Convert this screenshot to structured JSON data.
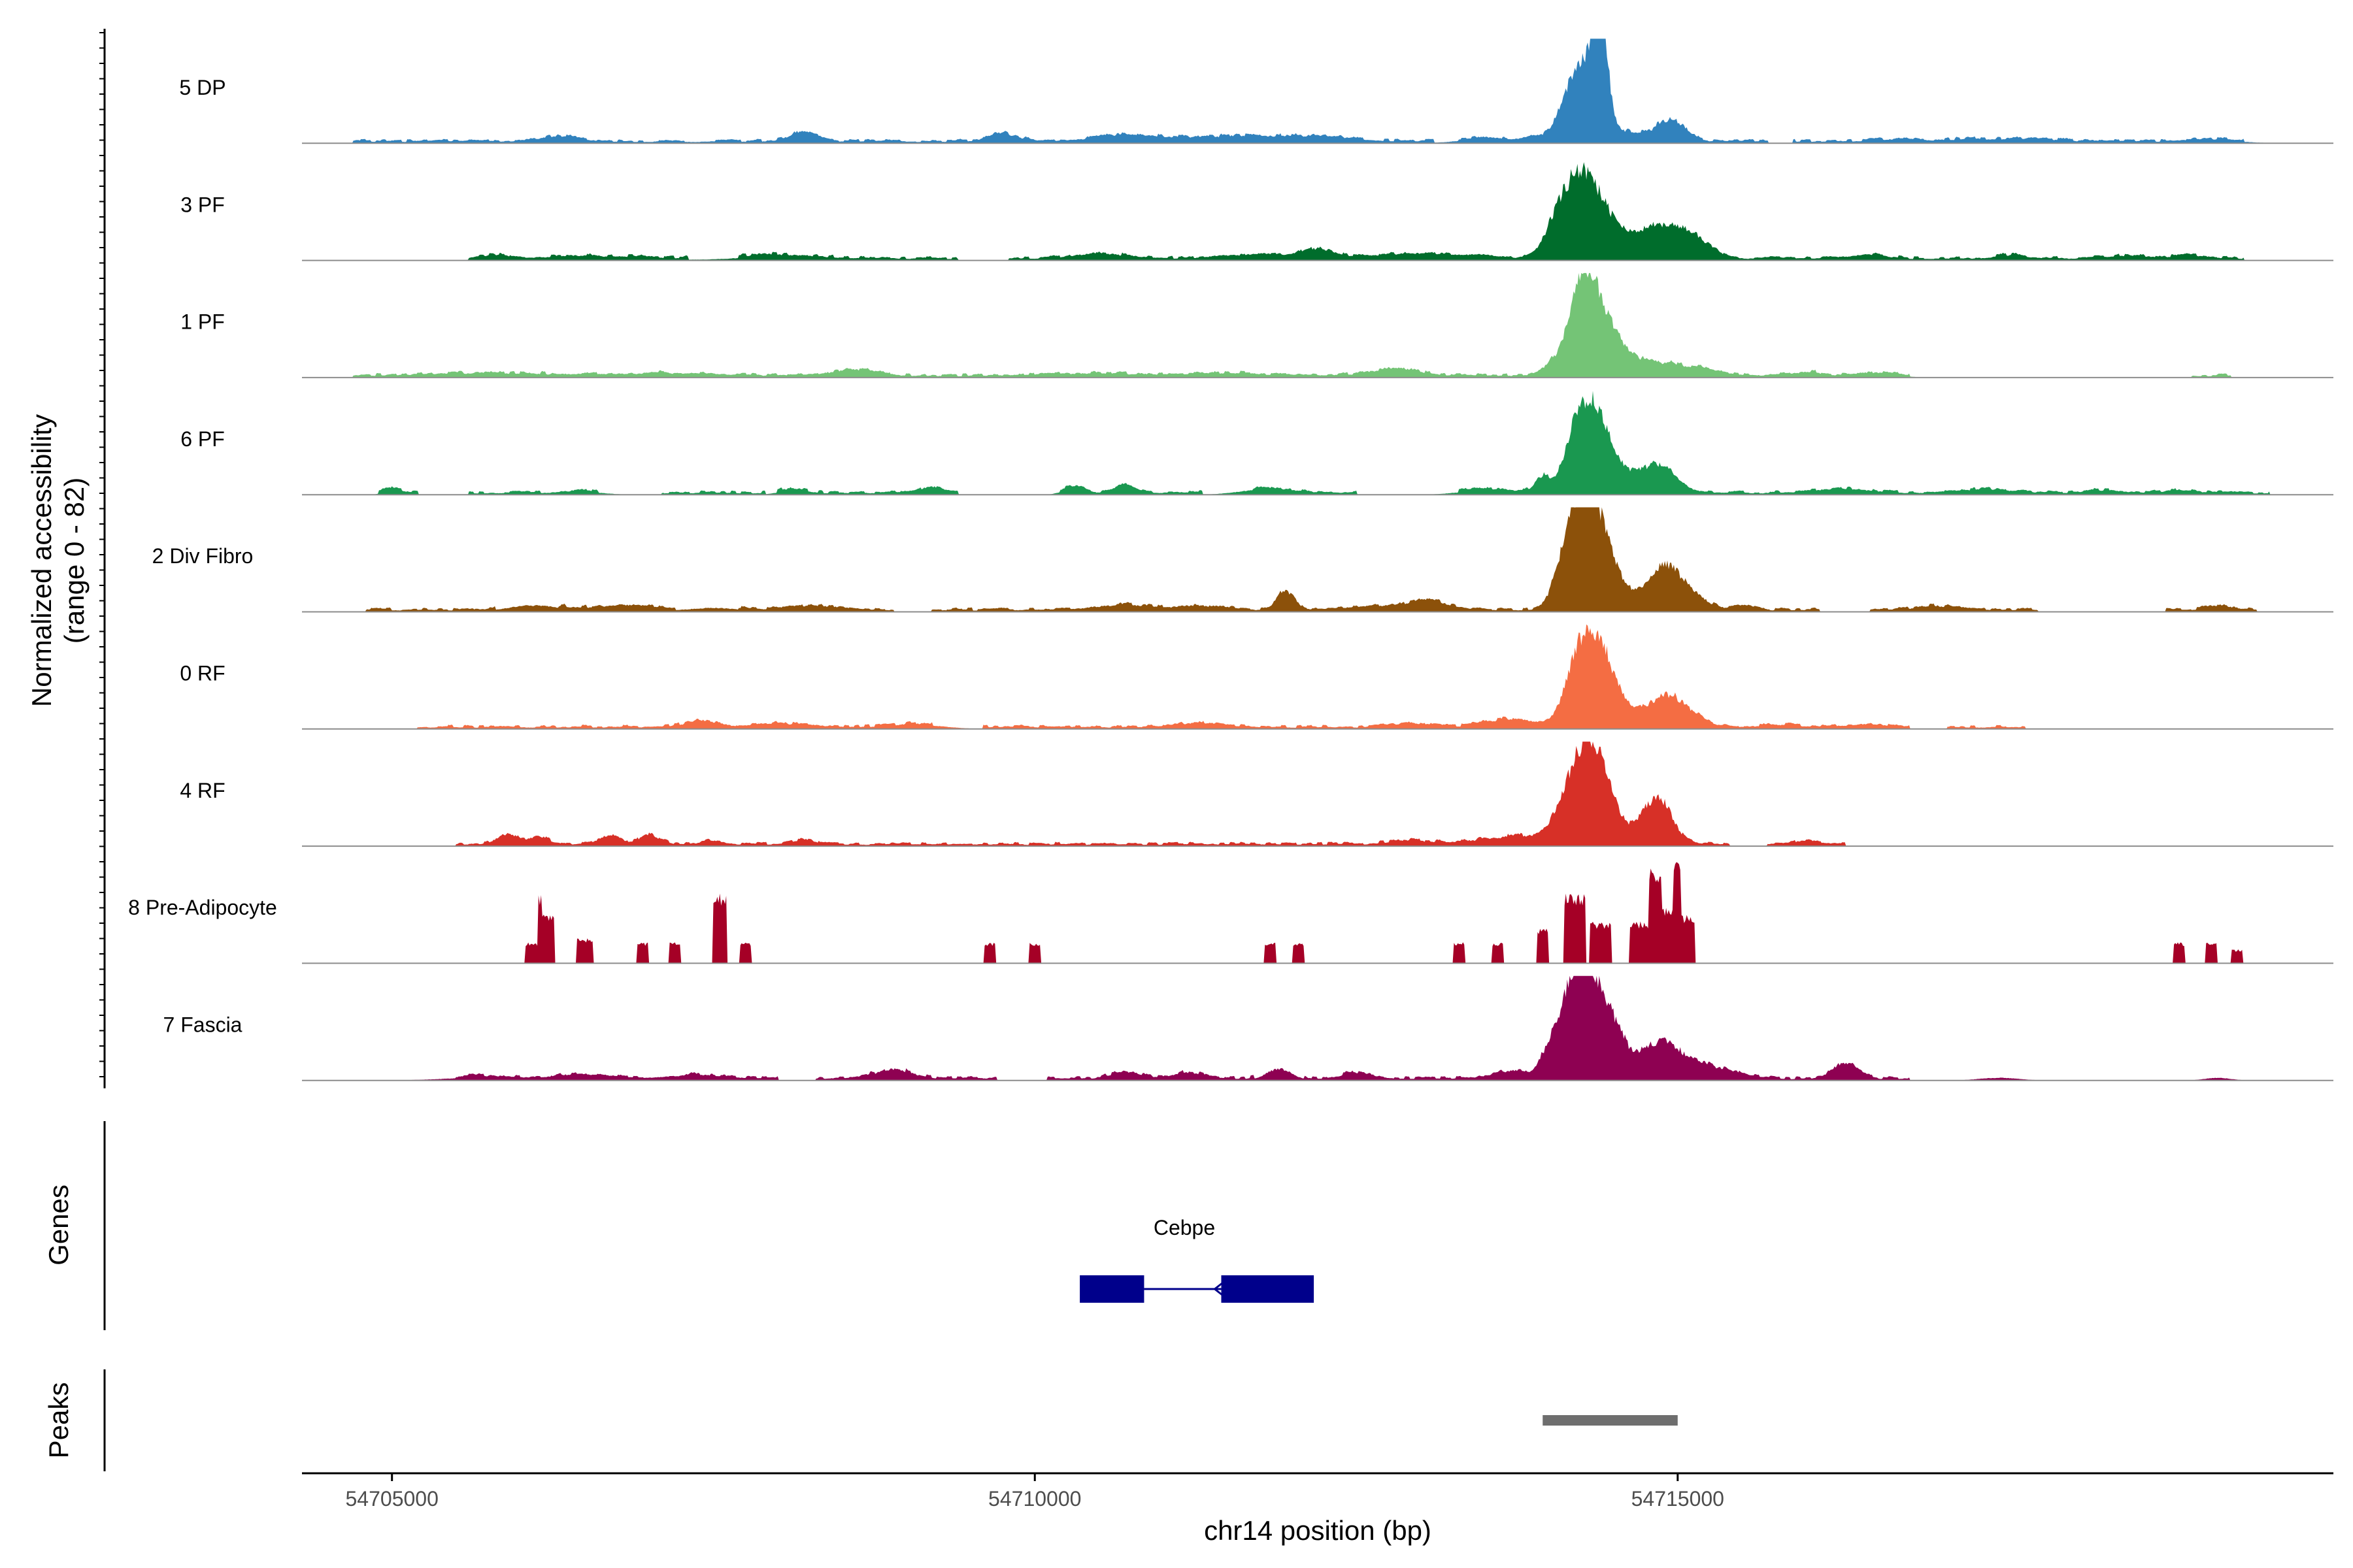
{
  "chart_data": {
    "type": "area",
    "title": "",
    "ylabel_line1": "Normalized accessibility",
    "ylabel_line2": "(range 0 - 82)",
    "xlabel": "chr14 position (bp)",
    "xlim": [
      54704300,
      54720100
    ],
    "y_range": [
      0,
      82
    ],
    "x_ticks": [
      54705000,
      54710000,
      54715000
    ],
    "x_tick_labels": [
      "54705000",
      "54710000",
      "54715000"
    ],
    "tracks": [
      {
        "name": "5 DP",
        "color": "#3182BD",
        "peaks": [
          [
            54713900,
            3,
            60
          ],
          [
            54714100,
            6,
            90
          ],
          [
            54714250,
            55,
            110
          ],
          [
            54714400,
            78,
            55
          ],
          [
            54714950,
            15,
            110
          ],
          [
            54714500,
            8,
            250
          ],
          [
            54713500,
            3,
            200
          ],
          [
            54706300,
            4,
            150
          ],
          [
            54708200,
            7,
            110
          ],
          [
            54709750,
            6,
            120
          ],
          [
            54710700,
            5,
            230
          ],
          [
            54711500,
            4,
            400
          ],
          [
            54712200,
            3,
            300
          ],
          [
            54716700,
            2,
            180
          ],
          [
            54717300,
            2,
            180
          ],
          [
            54717800,
            2,
            200
          ],
          [
            54719200,
            2,
            200
          ]
        ],
        "cover": [
          [
            54704700,
            54713100
          ],
          [
            54713300,
            54715700
          ],
          [
            54715900,
            54719400
          ]
        ]
      },
      {
        "name": "3 PF",
        "color": "#006D2C",
        "peaks": [
          [
            54714250,
            62,
            150
          ],
          [
            54714050,
            12,
            90
          ],
          [
            54714500,
            10,
            200
          ],
          [
            54714900,
            18,
            150
          ],
          [
            54715150,
            12,
            120
          ],
          [
            54714700,
            8,
            250
          ],
          [
            54713000,
            4,
            400
          ],
          [
            54712200,
            6,
            110
          ],
          [
            54711800,
            3,
            300
          ],
          [
            54710500,
            4,
            200
          ],
          [
            54708000,
            3,
            300
          ],
          [
            54706600,
            2,
            400
          ],
          [
            54705800,
            3,
            100
          ],
          [
            54716500,
            3,
            120
          ],
          [
            54717600,
            3,
            100
          ],
          [
            54718500,
            2,
            200
          ],
          [
            54719000,
            2,
            150
          ]
        ],
        "cover": [
          [
            54705600,
            54707300
          ],
          [
            54707700,
            54709400
          ],
          [
            54709800,
            54712000
          ],
          [
            54712000,
            54719400
          ]
        ]
      },
      {
        "name": "1 PF",
        "color": "#74C476",
        "peaks": [
          [
            54714250,
            55,
            100
          ],
          [
            54714380,
            40,
            130
          ],
          [
            54714030,
            8,
            80
          ],
          [
            54714550,
            10,
            150
          ],
          [
            54714850,
            9,
            180
          ],
          [
            54715200,
            5,
            150
          ],
          [
            54712800,
            5,
            200
          ],
          [
            54708600,
            5,
            150
          ],
          [
            54705800,
            2,
            500
          ],
          [
            54707200,
            2,
            400
          ],
          [
            54710500,
            2,
            300
          ],
          [
            54711500,
            2,
            300
          ],
          [
            54716000,
            3,
            120
          ],
          [
            54716600,
            2,
            150
          ]
        ],
        "cover": [
          [
            54704700,
            54716800
          ],
          [
            54719000,
            54719300
          ]
        ]
      },
      {
        "name": "6 PF",
        "color": "#1A9850",
        "peaks": [
          [
            54714350,
            65,
            130
          ],
          [
            54714200,
            25,
            90
          ],
          [
            54713950,
            12,
            60
          ],
          [
            54714850,
            20,
            130
          ],
          [
            54714650,
            6,
            150
          ],
          [
            54705000,
            4,
            60
          ],
          [
            54706500,
            2,
            150
          ],
          [
            54708100,
            3,
            100
          ],
          [
            54709200,
            4,
            80
          ],
          [
            54710300,
            5,
            80
          ],
          [
            54710700,
            6,
            80
          ],
          [
            54711800,
            4,
            200
          ],
          [
            54713500,
            3,
            200
          ],
          [
            54716300,
            3,
            200
          ],
          [
            54717400,
            3,
            200
          ],
          [
            54718300,
            2,
            150
          ],
          [
            54718900,
            2,
            100
          ]
        ],
        "cover": [
          [
            54704900,
            54705200
          ],
          [
            54705600,
            54706600
          ],
          [
            54707100,
            54707900
          ],
          [
            54708000,
            54709400
          ],
          [
            54710200,
            54711300
          ],
          [
            54711700,
            54712500
          ],
          [
            54713300,
            54719600
          ]
        ]
      },
      {
        "name": "2 Div Fibro",
        "color": "#8C510A",
        "peaks": [
          [
            54714300,
            75,
            110
          ],
          [
            54714150,
            40,
            100
          ],
          [
            54714450,
            25,
            100
          ],
          [
            54714900,
            30,
            110
          ],
          [
            54715100,
            12,
            120
          ],
          [
            54714650,
            10,
            150
          ],
          [
            54711950,
            15,
            70
          ],
          [
            54713050,
            8,
            150
          ],
          [
            54706100,
            5,
            200
          ],
          [
            54706800,
            4,
            200
          ],
          [
            54707500,
            3,
            200
          ],
          [
            54708300,
            3,
            200
          ],
          [
            54710700,
            4,
            200
          ],
          [
            54711300,
            3,
            200
          ],
          [
            54712600,
            3,
            200
          ],
          [
            54715500,
            3,
            100
          ],
          [
            54717000,
            3,
            150
          ],
          [
            54719200,
            3,
            100
          ]
        ],
        "cover": [
          [
            54704800,
            54705800
          ],
          [
            54706300,
            54707200
          ],
          [
            54707700,
            54708900
          ],
          [
            54709200,
            54716100
          ],
          [
            54716500,
            54717800
          ],
          [
            54718800,
            54719500
          ]
        ]
      },
      {
        "name": "0 RF",
        "color": "#F46D43",
        "peaks": [
          [
            54714350,
            62,
            130
          ],
          [
            54714200,
            25,
            100
          ],
          [
            54714550,
            12,
            150
          ],
          [
            54714900,
            22,
            130
          ],
          [
            54715100,
            8,
            120
          ],
          [
            54713700,
            6,
            200
          ],
          [
            54707400,
            5,
            120
          ],
          [
            54708000,
            3,
            200
          ],
          [
            54712900,
            3,
            150
          ],
          [
            54709100,
            3,
            200
          ],
          [
            54711300,
            3,
            200
          ],
          [
            54715800,
            2,
            150
          ],
          [
            54716500,
            2,
            150
          ]
        ],
        "cover": [
          [
            54705200,
            54709200
          ],
          [
            54709600,
            54716800
          ],
          [
            54717100,
            54717700
          ]
        ]
      },
      {
        "name": "4 RF",
        "color": "#D73027",
        "peaks": [
          [
            54714250,
            62,
            120
          ],
          [
            54714400,
            40,
            110
          ],
          [
            54714850,
            32,
            110
          ],
          [
            54714650,
            8,
            150
          ],
          [
            54714050,
            10,
            80
          ],
          [
            54713800,
            6,
            150
          ],
          [
            54705900,
            8,
            80
          ],
          [
            54706150,
            5,
            80
          ],
          [
            54706700,
            6,
            80
          ],
          [
            54707000,
            7,
            80
          ],
          [
            54707500,
            3,
            80
          ],
          [
            54708200,
            4,
            80
          ],
          [
            54712900,
            3,
            150
          ],
          [
            54713450,
            3,
            200
          ],
          [
            54716000,
            3,
            100
          ]
        ],
        "cover": [
          [
            54705500,
            54715400
          ],
          [
            54715700,
            54716300
          ]
        ]
      },
      {
        "name": "8 Pre-Adipocyte",
        "color": "#A50026",
        "blocky": true,
        "peaks": [
          [
            54706100,
            15,
            60
          ],
          [
            54706200,
            35,
            60
          ],
          [
            54706500,
            18,
            60
          ],
          [
            54706950,
            15,
            40
          ],
          [
            54707200,
            15,
            40
          ],
          [
            54707550,
            50,
            50
          ],
          [
            54707750,
            15,
            40
          ],
          [
            54709650,
            15,
            40
          ],
          [
            54710000,
            15,
            40
          ],
          [
            54711830,
            15,
            40
          ],
          [
            54712050,
            15,
            40
          ],
          [
            54713300,
            15,
            40
          ],
          [
            54713600,
            15,
            40
          ],
          [
            54713950,
            25,
            40
          ],
          [
            54714200,
            50,
            80
          ],
          [
            54714400,
            30,
            80
          ],
          [
            54714750,
            30,
            120
          ],
          [
            54714900,
            40,
            120
          ],
          [
            54715050,
            35,
            80
          ],
          [
            54718900,
            15,
            40
          ],
          [
            54719150,
            15,
            40
          ],
          [
            54719350,
            10,
            40
          ]
        ],
        "cover": []
      },
      {
        "name": "7 Fascia",
        "color": "#8E0152",
        "peaks": [
          [
            54714300,
            70,
            130
          ],
          [
            54714150,
            35,
            110
          ],
          [
            54714500,
            28,
            120
          ],
          [
            54714850,
            25,
            130
          ],
          [
            54715100,
            12,
            150
          ],
          [
            54715400,
            5,
            150
          ],
          [
            54716300,
            12,
            100
          ],
          [
            54714000,
            12,
            80
          ],
          [
            54713700,
            6,
            120
          ],
          [
            54711900,
            9,
            100
          ],
          [
            54708900,
            7,
            150
          ],
          [
            54710700,
            5,
            120
          ],
          [
            54711200,
            5,
            120
          ],
          [
            54712500,
            5,
            100
          ],
          [
            54705700,
            2,
            300
          ],
          [
            54706500,
            3,
            200
          ],
          [
            54707400,
            3,
            200
          ],
          [
            54717500,
            2,
            150
          ],
          [
            54719200,
            2,
            100
          ]
        ],
        "cover": [
          [
            54705500,
            54708000
          ],
          [
            54708300,
            54709700
          ],
          [
            54710100,
            54711700
          ],
          [
            54712100,
            54716800
          ]
        ]
      }
    ],
    "genes": {
      "label": "Genes",
      "gene_name": "Cebpe",
      "exons": [
        [
          54710350,
          54710850
        ],
        [
          54711450,
          54712170
        ]
      ],
      "intron": [
        54710850,
        54711450
      ],
      "strand": "-",
      "color": "#00008B"
    },
    "peaks_track": {
      "label": "Peaks",
      "regions": [
        [
          54713950,
          54715000
        ]
      ],
      "color": "#6E6E6E"
    }
  }
}
